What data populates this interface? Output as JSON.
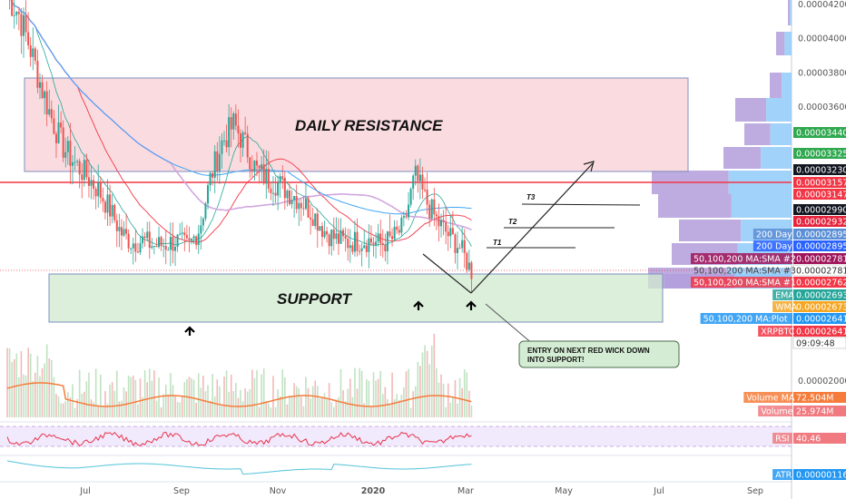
{
  "chart_data": {
    "type": "candlestick",
    "symbol": "XRPBTC",
    "annotations": {
      "resistance_label": "DAILY RESISTANCE",
      "support_label": "SUPPORT",
      "callout": [
        "ENTRY ON NEXT RED WICK DOWN",
        "INTO SUPPORT!"
      ],
      "targets": [
        "T1",
        "T2",
        "T3"
      ]
    },
    "x_ticks": [
      "Jul",
      "Sep",
      "Nov",
      "2020",
      "Mar",
      "May",
      "Jul",
      "Sep"
    ],
    "y_ticks": [
      "0.00004200",
      "0.00004000",
      "0.00003800",
      "0.00003600",
      "0.00002000"
    ],
    "price_tags": [
      {
        "label": "",
        "value": "0.00003440",
        "color": "#2fa84f"
      },
      {
        "label": "",
        "value": "0.00003325",
        "color": "#2fa84f"
      },
      {
        "label": "",
        "value": "0.00003230",
        "color": "#131722"
      },
      {
        "label": "",
        "value": "0.00003157",
        "color": "#f23645"
      },
      {
        "label": "",
        "value": "0.00003147",
        "color": "#f23645"
      },
      {
        "label": "",
        "value": "0.00002990",
        "color": "#131722"
      },
      {
        "label": "",
        "value": "0.00002932",
        "color": "#e5253d"
      },
      {
        "label": "200 Day",
        "value": "0.00002895",
        "color": "#5b8fd6"
      },
      {
        "label": "200 Day",
        "value": "0.00002895",
        "color": "#2962ff"
      },
      {
        "label": "50,100,200 MA:SMA #2",
        "value": "0.00002781",
        "color": "#a0155b"
      },
      {
        "label": "",
        "value": "0.00002781",
        "color": "#ffffff"
      },
      {
        "label": "50,100,200 MA:SMA #3",
        "value": "",
        "color": ""
      },
      {
        "label": "50,100,200 MA:SMA #1",
        "value": "0.00002762",
        "color": "#f23645"
      },
      {
        "label": "EMA",
        "value": "0.00002693",
        "color": "#26a69a"
      },
      {
        "label": "WMA",
        "value": "0.00002673",
        "color": "#f5a623"
      },
      {
        "label": "50,100,200 MA:Plot",
        "value": "0.00002641",
        "color": "#2196f3"
      },
      {
        "label": "XRPBTC",
        "value": "0.00002641",
        "color": "#f23645"
      },
      {
        "label": "",
        "value": "09:09:48",
        "color": "#ffffff"
      },
      {
        "label": "Volume MA",
        "value": "72.504M",
        "color": "#f57c3a"
      },
      {
        "label": "Volume",
        "value": "25.974M",
        "color": "#f07a80"
      },
      {
        "label": "RSI",
        "value": "40.46",
        "color": "#f07a80"
      },
      {
        "label": "ATR",
        "value": "0.00000116",
        "color": "#2196f3"
      }
    ],
    "series": [
      {
        "values": [
          4.26e-05,
          4.15e-05,
          3.95e-05,
          3.72e-05,
          3.52e-05,
          3.36e-05,
          3.27e-05,
          3.2e-05,
          3.12e-05,
          3.01e-05,
          2.87e-05,
          2.81e-05,
          2.82e-05,
          2.79e-05,
          2.8e-05,
          2.82e-05,
          2.78e-05,
          2.9e-05,
          3.2e-05,
          3.4e-05,
          3.5e-05,
          3.38e-05,
          3.23e-05,
          3.18e-05,
          3.15e-05,
          3.1e-05,
          3.05e-05,
          2.98e-05,
          2.88e-05,
          2.83e-05,
          2.81e-05,
          2.82e-05,
          2.82e-05,
          2.8e-05,
          2.83e-05,
          2.9e-05,
          3.2e-05,
          3.05e-05,
          2.93e-05,
          2.85e-05,
          2.78e-05,
          2.64e-05
        ]
      }
    ]
  }
}
